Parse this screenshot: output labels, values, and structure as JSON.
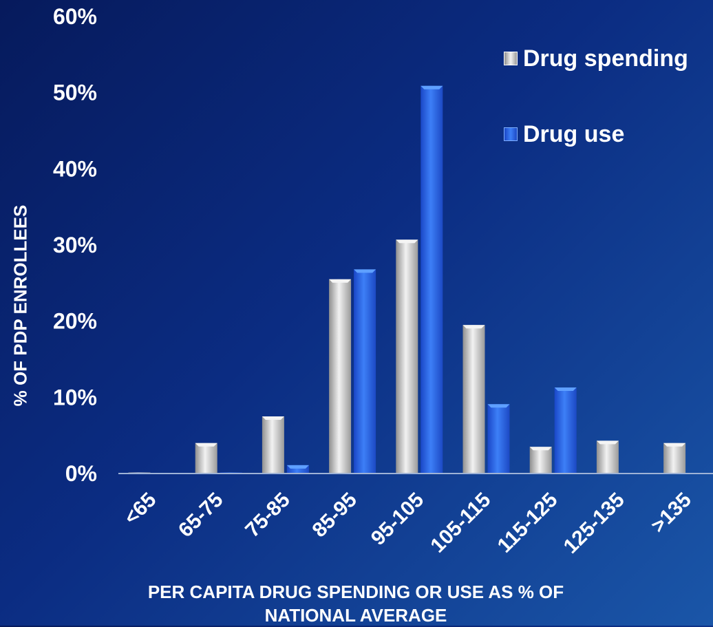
{
  "chart_data": {
    "type": "bar",
    "title": "",
    "xlabel": "PER CAPITA DRUG SPENDING OR USE AS % OF NATIONAL AVERAGE",
    "ylabel": "% OF PDP ENROLLEES",
    "categories": [
      "<65",
      "65-75",
      "75-85",
      "85-95",
      "95-105",
      "105-115",
      "115-125",
      "125-135",
      ">135"
    ],
    "series": [
      {
        "name": "Drug spending",
        "values": [
          0.1,
          4,
          7.5,
          25.5,
          30.7,
          19.5,
          3.5,
          4.3,
          4
        ],
        "color": "#d0d0d0"
      },
      {
        "name": "Drug use",
        "values": [
          null,
          0.1,
          1.1,
          26.8,
          50.9,
          9.1,
          11.3,
          null,
          null
        ],
        "color": "#2f6ff0"
      }
    ],
    "y_ticks": [
      "0%",
      "10%",
      "20%",
      "30%",
      "40%",
      "50%",
      "60%"
    ],
    "ylim": [
      0,
      60
    ],
    "grid": false,
    "legend_position": "top-right"
  }
}
